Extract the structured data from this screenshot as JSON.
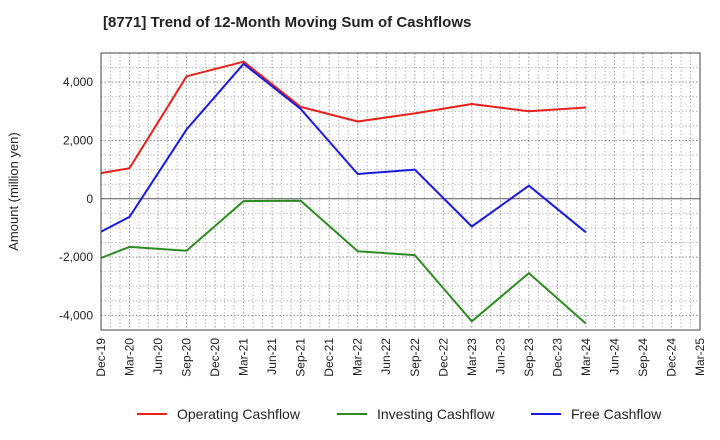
{
  "chart_data": {
    "type": "line",
    "title": "[8771]  Trend of 12-Month Moving Sum of Cashflows",
    "xlabel": "",
    "ylabel": "Amount (million yen)",
    "categories": [
      "Dec-19",
      "Mar-20",
      "Jun-20",
      "Sep-20",
      "Dec-20",
      "Mar-21",
      "Jun-21",
      "Sep-21",
      "Dec-21",
      "Mar-22",
      "Jun-22",
      "Sep-22",
      "Dec-22",
      "Mar-23",
      "Jun-23",
      "Sep-23",
      "Dec-23",
      "Mar-24",
      "Jun-24",
      "Sep-24",
      "Dec-24",
      "Mar-25"
    ],
    "ylim": [
      -4500,
      5000
    ],
    "yticks": [
      -4000,
      -2000,
      0,
      2000,
      4000
    ],
    "ytick_labels": [
      "-4,000",
      "-2,000",
      "0",
      "2,000",
      "4,000"
    ],
    "grid": true,
    "legend_position": "bottom",
    "series": [
      {
        "name": "Operating Cashflow",
        "color": "#e8201c",
        "values": [
          880,
          1050,
          null,
          4200,
          null,
          4700,
          null,
          3150,
          null,
          2650,
          null,
          2930,
          null,
          3250,
          null,
          3000,
          null,
          3130,
          null,
          null,
          null,
          null
        ]
      },
      {
        "name": "Investing Cashflow",
        "color": "#2e8b22",
        "values": [
          -2030,
          -1650,
          null,
          -1780,
          null,
          -80,
          null,
          -70,
          null,
          -1800,
          null,
          -1930,
          null,
          -4200,
          null,
          -2550,
          null,
          -4280,
          null,
          null,
          null,
          null
        ]
      },
      {
        "name": "Free Cashflow",
        "color": "#1a1adf",
        "values": [
          -1130,
          -620,
          null,
          2380,
          null,
          4630,
          null,
          3080,
          null,
          850,
          null,
          1000,
          null,
          -950,
          null,
          450,
          null,
          -1150,
          null,
          null,
          null,
          null
        ]
      }
    ]
  }
}
